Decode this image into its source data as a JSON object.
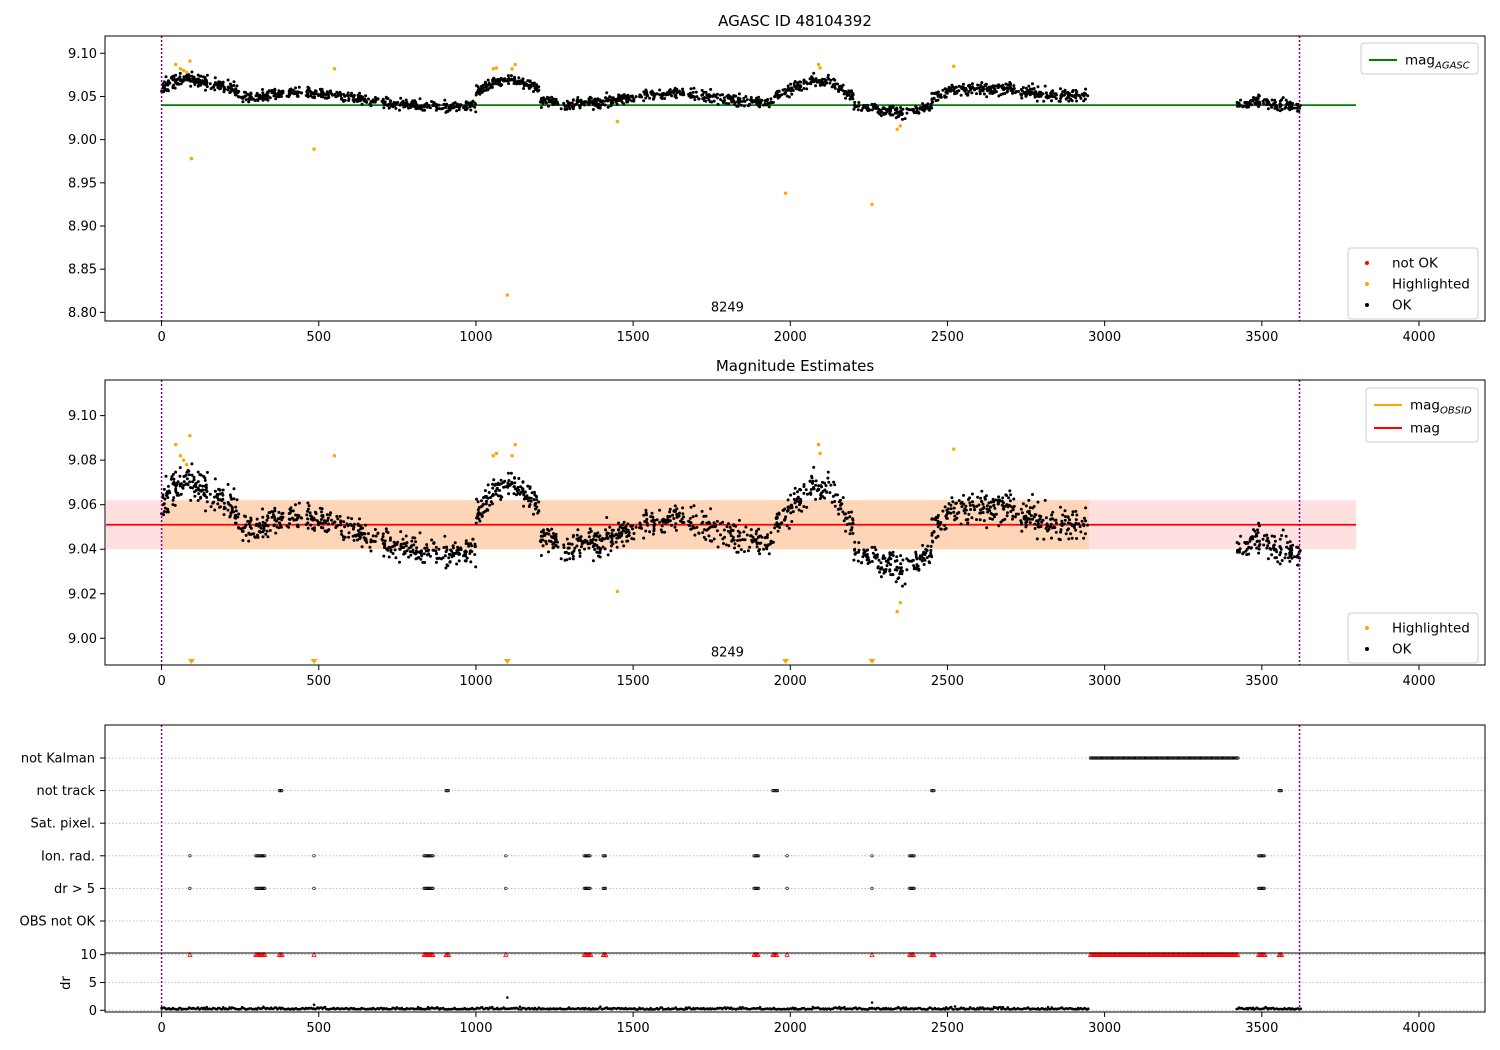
{
  "chart_data": [
    {
      "type": "scatter",
      "title": "AGASC ID 48104392",
      "xlim": [
        -180,
        4210
      ],
      "ylim": [
        8.79,
        9.12
      ],
      "x_ticks": [
        "0",
        "500",
        "1000",
        "1500",
        "2000",
        "2500",
        "3000",
        "3500",
        "4000"
      ],
      "y_ticks": [
        "8.80",
        "8.85",
        "8.90",
        "8.95",
        "9.00",
        "9.05",
        "9.10"
      ],
      "grid": false,
      "legend_upper": {
        "position": "top-right",
        "entries": [
          {
            "label": "mag",
            "sub": "AGASC",
            "color": "#008000",
            "kind": "line"
          }
        ]
      },
      "legend_lower": {
        "position": "bottom-right",
        "entries": [
          {
            "label": "not OK",
            "color": "#ff0000",
            "kind": "dot"
          },
          {
            "label": "Highlighted",
            "color": "#ffa500",
            "kind": "dot"
          },
          {
            "label": "OK",
            "color": "#000000",
            "kind": "dot"
          }
        ]
      },
      "reference_line": {
        "y": 9.04,
        "x_range": [
          0,
          3800
        ],
        "color": "#008000"
      },
      "vlines": [
        0,
        3620
      ],
      "annotation": {
        "text": "8249",
        "x": 1800,
        "y": 8.8
      },
      "ok_segments": [
        {
          "x0": 0,
          "x1": 250,
          "levels": [
            9.06,
            9.068,
            9.072,
            9.068,
            9.065,
            9.06,
            9.055
          ],
          "spread": 0.007,
          "n": 180
        },
        {
          "x0": 250,
          "x1": 1000,
          "levels": [
            9.05,
            9.052,
            9.055,
            9.05,
            9.045,
            9.04,
            9.038,
            9.04
          ],
          "spread": 0.006,
          "n": 420
        },
        {
          "x0": 1000,
          "x1": 1200,
          "levels": [
            9.055,
            9.065,
            9.07,
            9.066,
            9.06
          ],
          "spread": 0.006,
          "n": 140
        },
        {
          "x0": 1200,
          "x1": 1950,
          "levels": [
            9.045,
            9.04,
            9.045,
            9.05,
            9.055,
            9.05,
            9.045,
            9.042
          ],
          "spread": 0.006,
          "n": 420
        },
        {
          "x0": 1950,
          "x1": 2200,
          "levels": [
            9.05,
            9.06,
            9.068,
            9.065,
            9.05
          ],
          "spread": 0.006,
          "n": 150
        },
        {
          "x0": 2200,
          "x1": 2450,
          "levels": [
            9.04,
            9.035,
            9.03,
            9.04
          ],
          "spread": 0.006,
          "n": 150
        },
        {
          "x0": 2450,
          "x1": 2950,
          "levels": [
            9.05,
            9.06,
            9.058,
            9.052,
            9.05
          ],
          "spread": 0.007,
          "n": 300
        },
        {
          "x0": 3420,
          "x1": 3625,
          "levels": [
            9.04,
            9.045,
            9.04,
            9.038
          ],
          "spread": 0.006,
          "n": 120
        }
      ],
      "highlighted": [
        [
          45,
          9.087
        ],
        [
          60,
          9.082
        ],
        [
          70,
          9.08
        ],
        [
          80,
          9.078
        ],
        [
          90,
          9.091
        ],
        [
          95,
          8.978
        ],
        [
          485,
          8.989
        ],
        [
          550,
          9.082
        ],
        [
          1055,
          9.082
        ],
        [
          1065,
          9.083
        ],
        [
          1100,
          8.82
        ],
        [
          1115,
          9.082
        ],
        [
          1125,
          9.087
        ],
        [
          1450,
          9.021
        ],
        [
          1985,
          8.938
        ],
        [
          2090,
          9.087
        ],
        [
          2095,
          9.083
        ],
        [
          2260,
          8.925
        ],
        [
          2340,
          9.012
        ],
        [
          2350,
          9.016
        ],
        [
          2520,
          9.085
        ]
      ]
    },
    {
      "type": "scatter",
      "title": "Magnitude Estimates",
      "xlim": [
        -180,
        4210
      ],
      "ylim": [
        8.988,
        9.116
      ],
      "x_ticks": [
        "0",
        "500",
        "1000",
        "1500",
        "2000",
        "2500",
        "3000",
        "3500",
        "4000"
      ],
      "y_ticks": [
        "9.00",
        "9.02",
        "9.04",
        "9.06",
        "9.08",
        "9.10"
      ],
      "grid": false,
      "legend_upper": {
        "position": "top-right",
        "entries": [
          {
            "label": "mag",
            "sub": "OBSID",
            "color": "#ffa500",
            "kind": "line"
          },
          {
            "label": "mag",
            "sub": "",
            "color": "#ff0000",
            "kind": "line"
          }
        ]
      },
      "legend_lower": {
        "position": "bottom-right",
        "entries": [
          {
            "label": "Highlighted",
            "color": "#ffa500",
            "kind": "dot"
          },
          {
            "label": "OK",
            "color": "#000000",
            "kind": "dot"
          }
        ]
      },
      "band": {
        "y0": 9.04,
        "y1": 9.062,
        "x_range": [
          -180,
          3800
        ]
      },
      "obsid_band": {
        "y0": 9.04,
        "y1": 9.062,
        "x_range": [
          0,
          2950
        ]
      },
      "mean_line": {
        "y": 9.051,
        "x_range": [
          -180,
          3800
        ],
        "color": "#ff0000"
      },
      "vlines": [
        0,
        3620
      ],
      "annotation": {
        "text": "8249",
        "x": 1800,
        "y": 8.99
      },
      "ok_segments": [
        {
          "x0": 0,
          "x1": 250,
          "levels": [
            9.06,
            9.068,
            9.072,
            9.068,
            9.065,
            9.06,
            9.055
          ],
          "spread": 0.007,
          "n": 180
        },
        {
          "x0": 250,
          "x1": 1000,
          "levels": [
            9.05,
            9.052,
            9.055,
            9.05,
            9.045,
            9.04,
            9.038,
            9.04
          ],
          "spread": 0.006,
          "n": 420
        },
        {
          "x0": 1000,
          "x1": 1200,
          "levels": [
            9.055,
            9.065,
            9.07,
            9.066,
            9.06
          ],
          "spread": 0.006,
          "n": 140
        },
        {
          "x0": 1200,
          "x1": 1950,
          "levels": [
            9.045,
            9.04,
            9.045,
            9.05,
            9.055,
            9.05,
            9.045,
            9.042
          ],
          "spread": 0.006,
          "n": 420
        },
        {
          "x0": 1950,
          "x1": 2200,
          "levels": [
            9.05,
            9.06,
            9.068,
            9.065,
            9.05
          ],
          "spread": 0.006,
          "n": 150
        },
        {
          "x0": 2200,
          "x1": 2450,
          "levels": [
            9.04,
            9.035,
            9.03,
            9.04
          ],
          "spread": 0.006,
          "n": 150
        },
        {
          "x0": 2450,
          "x1": 2950,
          "levels": [
            9.05,
            9.06,
            9.058,
            9.052,
            9.05
          ],
          "spread": 0.007,
          "n": 300
        },
        {
          "x0": 3420,
          "x1": 3625,
          "levels": [
            9.04,
            9.045,
            9.04,
            9.038
          ],
          "spread": 0.006,
          "n": 120
        }
      ],
      "highlighted": [
        [
          45,
          9.087
        ],
        [
          60,
          9.082
        ],
        [
          70,
          9.08
        ],
        [
          80,
          9.078
        ],
        [
          90,
          9.091
        ],
        [
          550,
          9.082
        ],
        [
          1055,
          9.082
        ],
        [
          1065,
          9.083
        ],
        [
          1115,
          9.082
        ],
        [
          1125,
          9.087
        ],
        [
          1450,
          9.021
        ],
        [
          2090,
          9.087
        ],
        [
          2095,
          9.083
        ],
        [
          2340,
          9.012
        ],
        [
          2350,
          9.016
        ],
        [
          2520,
          9.085
        ]
      ],
      "below_markers": [
        95,
        485,
        1100,
        1985,
        2260
      ]
    },
    {
      "type": "scatter",
      "title": "",
      "xlim": [
        -180,
        4210
      ],
      "categories": [
        "not Kalman",
        "not track",
        "Sat. pixel.",
        "Ion. rad.",
        "dr > 5",
        "OBS not OK"
      ],
      "flags": {
        "not Kalman": [
          [
            2955,
            3425
          ]
        ],
        "not track": [
          [
            375,
            385
          ],
          [
            905,
            915
          ],
          [
            1945,
            1960
          ],
          [
            2450,
            2460
          ],
          [
            3555,
            3565
          ]
        ],
        "Sat. pixel.": [],
        "Ion. rad.": [
          [
            90,
            92
          ],
          [
            300,
            330
          ],
          [
            485,
            487
          ],
          [
            835,
            865
          ],
          [
            1095,
            1097
          ],
          [
            1345,
            1365
          ],
          [
            1405,
            1415
          ],
          [
            1885,
            1900
          ],
          [
            1990,
            1992
          ],
          [
            2260,
            2262
          ],
          [
            2380,
            2395
          ],
          [
            3490,
            3510
          ]
        ],
        "dr > 5": [
          [
            90,
            92
          ],
          [
            300,
            330
          ],
          [
            485,
            487
          ],
          [
            835,
            865
          ],
          [
            1095,
            1097
          ],
          [
            1345,
            1365
          ],
          [
            1405,
            1415
          ],
          [
            1885,
            1900
          ],
          [
            1990,
            1992
          ],
          [
            2260,
            2262
          ],
          [
            2380,
            2395
          ],
          [
            3490,
            3510
          ]
        ],
        "OBS not OK": []
      },
      "vlines": [
        0,
        3620
      ]
    },
    {
      "type": "scatter",
      "title": "",
      "xlim": [
        -180,
        4210
      ],
      "ylim": [
        -0.3,
        10.3
      ],
      "ylabel": "dr",
      "x_ticks": [
        "0",
        "500",
        "1000",
        "1500",
        "2000",
        "2500",
        "3000",
        "3500",
        "4000"
      ],
      "y_ticks": [
        "0",
        "5",
        "10"
      ],
      "dr_segments": [
        [
          0,
          2950
        ],
        [
          3420,
          3625
        ]
      ],
      "dr_spikes": [
        [
          1100,
          2.3
        ],
        [
          2260,
          1.4
        ],
        [
          485,
          1.0
        ]
      ],
      "capped_color": "#ff0000",
      "capped": [
        [
          90,
          92
        ],
        [
          300,
          330
        ],
        [
          375,
          385
        ],
        [
          485,
          487
        ],
        [
          835,
          865
        ],
        [
          905,
          915
        ],
        [
          1095,
          1097
        ],
        [
          1345,
          1365
        ],
        [
          1405,
          1415
        ],
        [
          1885,
          1900
        ],
        [
          1945,
          1960
        ],
        [
          1990,
          1992
        ],
        [
          2260,
          2262
        ],
        [
          2380,
          2395
        ],
        [
          2450,
          2460
        ],
        [
          2955,
          3425
        ],
        [
          3490,
          3510
        ],
        [
          3555,
          3565
        ]
      ],
      "vlines": [
        0,
        3620
      ]
    }
  ]
}
